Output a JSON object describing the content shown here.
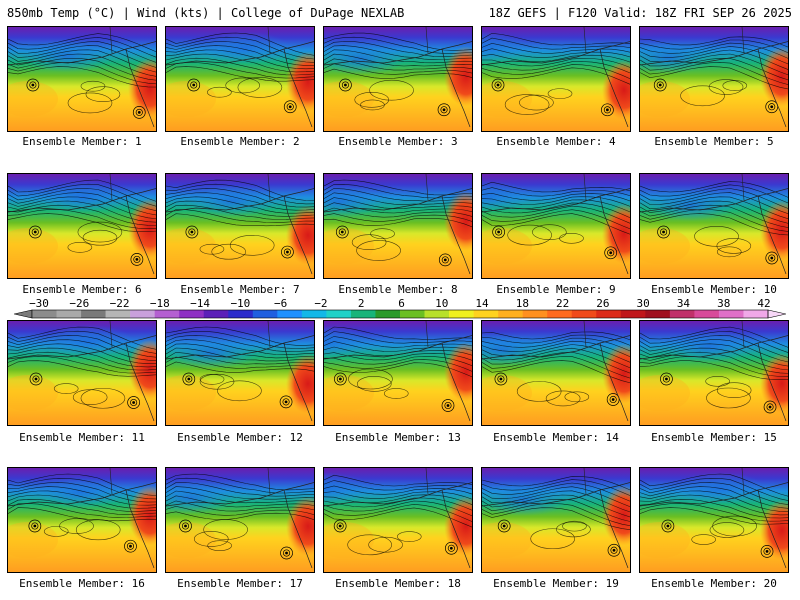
{
  "header": {
    "title": "850mb Temp (°C) | Wind (kts) | College of DuPage NEXLAB",
    "run": "18Z GEFS | F120 Valid: 18Z FRI SEP 26 2025"
  },
  "members": [
    {
      "label": "Ensemble Member: 1"
    },
    {
      "label": "Ensemble Member: 2"
    },
    {
      "label": "Ensemble Member: 3"
    },
    {
      "label": "Ensemble Member: 4"
    },
    {
      "label": "Ensemble Member: 5"
    },
    {
      "label": "Ensemble Member: 6"
    },
    {
      "label": "Ensemble Member: 7"
    },
    {
      "label": "Ensemble Member: 8"
    },
    {
      "label": "Ensemble Member: 9"
    },
    {
      "label": "Ensemble Member: 10"
    },
    {
      "label": "Ensemble Member: 11"
    },
    {
      "label": "Ensemble Member: 12"
    },
    {
      "label": "Ensemble Member: 13"
    },
    {
      "label": "Ensemble Member: 14"
    },
    {
      "label": "Ensemble Member: 15"
    },
    {
      "label": "Ensemble Member: 16"
    },
    {
      "label": "Ensemble Member: 17"
    },
    {
      "label": "Ensemble Member: 18"
    },
    {
      "label": "Ensemble Member: 19"
    },
    {
      "label": "Ensemble Member: 20"
    }
  ],
  "colorbar": {
    "ticks": [
      "−30",
      "−26",
      "−22",
      "−18",
      "−14",
      "−10",
      "−6",
      "−2",
      "2",
      "6",
      "10",
      "14",
      "18",
      "22",
      "26",
      "30",
      "34",
      "38",
      "42"
    ],
    "colors": [
      "#8c8c8c",
      "#a9a9a9",
      "#7a7a7a",
      "#b5b5b5",
      "#c9a0dc",
      "#b45fd1",
      "#8e2fc4",
      "#5b1fb8",
      "#2b2bcc",
      "#1f5fe0",
      "#1e90ff",
      "#12b8e8",
      "#1fd1c8",
      "#18b47a",
      "#2a9a2a",
      "#6bbf22",
      "#b8e02a",
      "#f0f020",
      "#ffd21e",
      "#ffb01e",
      "#ff9020",
      "#ff6a1e",
      "#f04a1a",
      "#dc2a18",
      "#c0161a",
      "#a0101e",
      "#c0306a",
      "#d84a9a",
      "#e070c8",
      "#f0a8e8"
    ]
  }
}
